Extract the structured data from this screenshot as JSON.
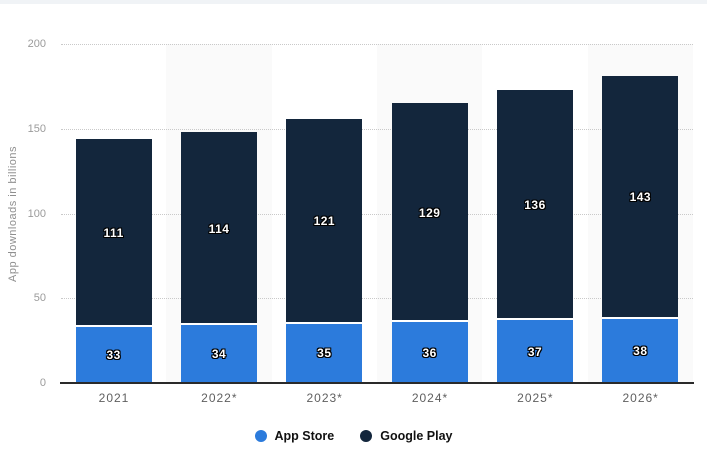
{
  "page": {
    "background_color": "#ffffff",
    "top_strip_color": "#f0f3f6"
  },
  "chart_data": {
    "type": "bar",
    "stacked": true,
    "title": "",
    "categories": [
      "2021",
      "2022*",
      "2023*",
      "2024*",
      "2025*",
      "2026*"
    ],
    "series": [
      {
        "name": "App Store",
        "color": "#2c7bdc",
        "values": [
          33,
          34,
          35,
          36,
          37,
          38
        ]
      },
      {
        "name": "Google Play",
        "color": "#13263c",
        "values": [
          111,
          114,
          121,
          129,
          136,
          143
        ]
      }
    ],
    "xlabel": "",
    "ylabel": "App downloads in billions",
    "ylim": [
      0,
      200
    ],
    "yticks": [
      0,
      50,
      100,
      150,
      200
    ],
    "grid": "horizontal-dotted",
    "legend_position": "bottom-center",
    "column_band_color": "#fafafa",
    "data_labels_visible": true
  },
  "styles": {
    "gridline_color": "#c9c9c9",
    "axis_line_color": "#2a2a2a",
    "ytick_color": "#9b9b9b",
    "xlabel_color": "#5f5f5f",
    "ytitle_color": "#8f8f8f",
    "legend_text_color": "#111111",
    "value_label_color": "#ffffff"
  }
}
